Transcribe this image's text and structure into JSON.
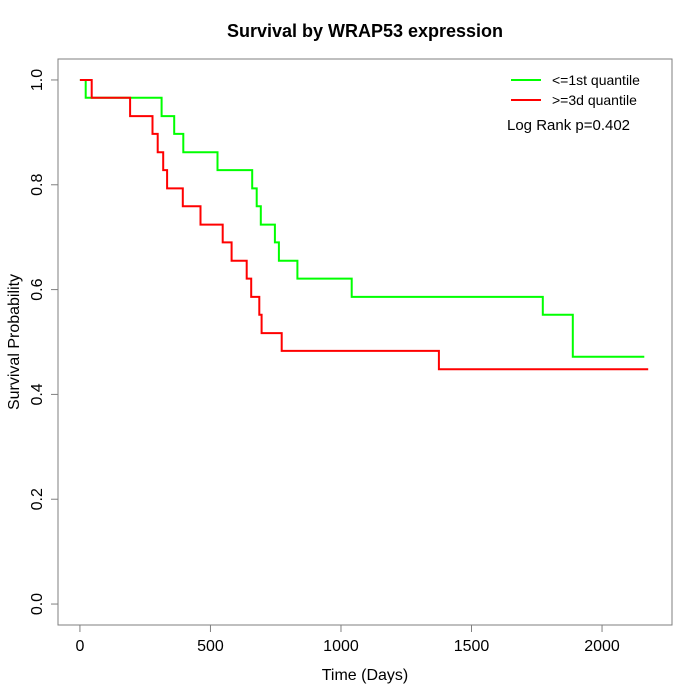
{
  "title": "Survival by WRAP53 expression",
  "chart_data": {
    "type": "line",
    "variant": "kaplan-meier-step",
    "title": "Survival by WRAP53 expression",
    "xlabel": "Time (Days)",
    "ylabel": "Survival Probability",
    "xticks": [
      0,
      500,
      1000,
      1500,
      2000
    ],
    "ytick_labels": [
      "0.0",
      "0.2",
      "0.4",
      "0.6",
      "0.8",
      "1.0"
    ],
    "axis_range_x": [
      -84,
      2268
    ],
    "axis_range_y": [
      -0.04,
      1.04
    ],
    "grid": false,
    "legend_position": "top-right",
    "legend": [
      {
        "label": "<=1st quantile",
        "color": "#00ff00"
      },
      {
        "label": ">=3d quantile",
        "color": "#ff0000"
      }
    ],
    "annotation": "Log Rank p=0.402",
    "frame_color": "#7f7f7f",
    "series": [
      {
        "name": "<=1st quantile",
        "color": "#00ff00",
        "points": [
          [
            0,
            1.0
          ],
          [
            22,
            0.966
          ],
          [
            313,
            0.931
          ],
          [
            361,
            0.897
          ],
          [
            396,
            0.862
          ],
          [
            527,
            0.828
          ],
          [
            660,
            0.793
          ],
          [
            677,
            0.759
          ],
          [
            693,
            0.724
          ],
          [
            747,
            0.69
          ],
          [
            762,
            0.655
          ],
          [
            833,
            0.621
          ],
          [
            1041,
            0.586
          ],
          [
            1773,
            0.552
          ],
          [
            1888,
            0.472
          ],
          [
            2162,
            0.472
          ]
        ]
      },
      {
        "name": ">=3d quantile",
        "color": "#ff0000",
        "points": [
          [
            0,
            1.0
          ],
          [
            45,
            0.966
          ],
          [
            192,
            0.931
          ],
          [
            278,
            0.897
          ],
          [
            298,
            0.862
          ],
          [
            319,
            0.828
          ],
          [
            334,
            0.793
          ],
          [
            394,
            0.759
          ],
          [
            462,
            0.724
          ],
          [
            547,
            0.69
          ],
          [
            581,
            0.655
          ],
          [
            639,
            0.621
          ],
          [
            656,
            0.586
          ],
          [
            687,
            0.552
          ],
          [
            696,
            0.517
          ],
          [
            773,
            0.483
          ],
          [
            1375,
            0.448
          ],
          [
            2177,
            0.448
          ]
        ]
      }
    ]
  }
}
